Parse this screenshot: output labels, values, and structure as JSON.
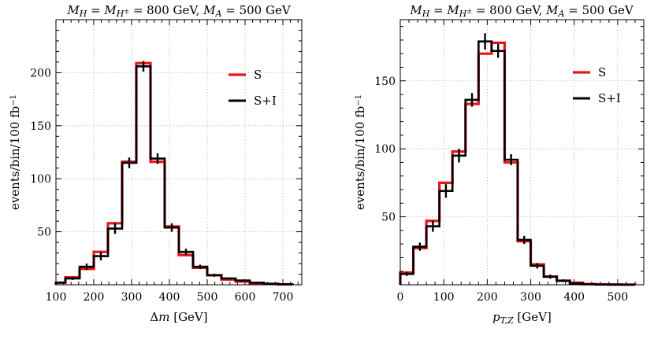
{
  "chart_data": [
    {
      "type": "step-histogram",
      "title": "M_H = M_H± = 800 GeV, M_A = 500 GeV",
      "title_parts": [
        "M",
        "H",
        " = ",
        "M",
        "H",
        "±",
        " = 800 GeV, ",
        "M",
        "A",
        " = 500 GeV"
      ],
      "xlabel": "Δm  [GeV]",
      "xlabel_parts": [
        "Δ",
        "m",
        "  [GeV]"
      ],
      "ylabel": "events/bin/100 fb⁻¹",
      "ylabel_parts": [
        "events/bin/100 fb",
        "−1"
      ],
      "xlim": [
        100,
        750
      ],
      "ylim": [
        0,
        250
      ],
      "xticks": [
        100,
        200,
        300,
        400,
        500,
        600,
        700
      ],
      "yticks": [
        50,
        100,
        150,
        200
      ],
      "xtick_labels": [
        "100",
        "200",
        "300",
        "400",
        "500",
        "600",
        "700"
      ],
      "ytick_labels": [
        "50",
        "100",
        "150",
        "200"
      ],
      "bin_edges": [
        100,
        125,
        162.5,
        200,
        237.5,
        275,
        312.5,
        350,
        387.5,
        425,
        462.5,
        500,
        537.5,
        575,
        612.5,
        650,
        687.5,
        725
      ],
      "legend": [
        "S",
        "S+I"
      ],
      "legend_position": "top-right",
      "series": [
        {
          "name": "S",
          "color": "#e8141a",
          "values": [
            2,
            7,
            15,
            31,
            58,
            116,
            209,
            116,
            55,
            28,
            16,
            9,
            5,
            3,
            1.5,
            0.8,
            0.4
          ]
        },
        {
          "name": "S+I",
          "color": "#000000",
          "values": [
            2,
            6,
            17,
            27,
            53,
            115,
            206,
            119,
            54,
            31,
            17,
            9,
            6,
            4,
            2,
            1,
            0.5
          ],
          "errors": [
            0.5,
            1.5,
            3,
            4,
            5,
            5,
            5,
            5,
            4,
            3,
            2,
            1.5,
            1,
            1,
            0.6,
            0.5,
            0.3
          ]
        }
      ]
    },
    {
      "type": "step-histogram",
      "title": "M_H = M_H± = 800 GeV, M_A = 500 GeV",
      "title_parts": [
        "M",
        "H",
        " = ",
        "M",
        "H",
        "±",
        " = 800 GeV, ",
        "M",
        "A",
        " = 500 GeV"
      ],
      "xlabel": "p_T,Z  [GeV]",
      "xlabel_parts": [
        "p",
        "T,Z",
        "  [GeV]"
      ],
      "ylabel": "events/bin/100 fb⁻¹",
      "ylabel_parts": [
        "events/bin/100 fb",
        "−1"
      ],
      "xlim": [
        0,
        560
      ],
      "ylim": [
        0,
        195
      ],
      "xticks": [
        0,
        100,
        200,
        300,
        400,
        500
      ],
      "yticks": [
        50,
        100,
        150
      ],
      "xtick_labels": [
        "0",
        "100",
        "200",
        "300",
        "400",
        "500"
      ],
      "ytick_labels": [
        "50",
        "100",
        "150"
      ],
      "bin_edges": [
        0,
        30,
        60,
        90,
        120,
        150,
        180,
        210,
        240,
        270,
        300,
        330,
        360,
        390,
        420,
        450,
        480,
        510,
        540
      ],
      "legend": [
        "S",
        "S+I"
      ],
      "legend_position": "top-right",
      "series": [
        {
          "name": "S",
          "color": "#e8141a",
          "values": [
            9,
            27,
            47,
            75,
            98,
            133,
            170,
            178,
            90,
            32,
            15,
            6,
            3,
            1.5,
            0.5,
            0.3,
            0.2,
            0.1
          ]
        },
        {
          "name": "S+I",
          "color": "#000000",
          "values": [
            8,
            28,
            43,
            69,
            95,
            136,
            179,
            172,
            92,
            33,
            14,
            6,
            3,
            1,
            0.4,
            0.2,
            0.1,
            0.1
          ],
          "errors": [
            1.5,
            3,
            4,
            5,
            5,
            5,
            6,
            5,
            4,
            3,
            2,
            1.5,
            1,
            0.6,
            0.4,
            0.3,
            0.2,
            0.2
          ]
        }
      ]
    }
  ]
}
